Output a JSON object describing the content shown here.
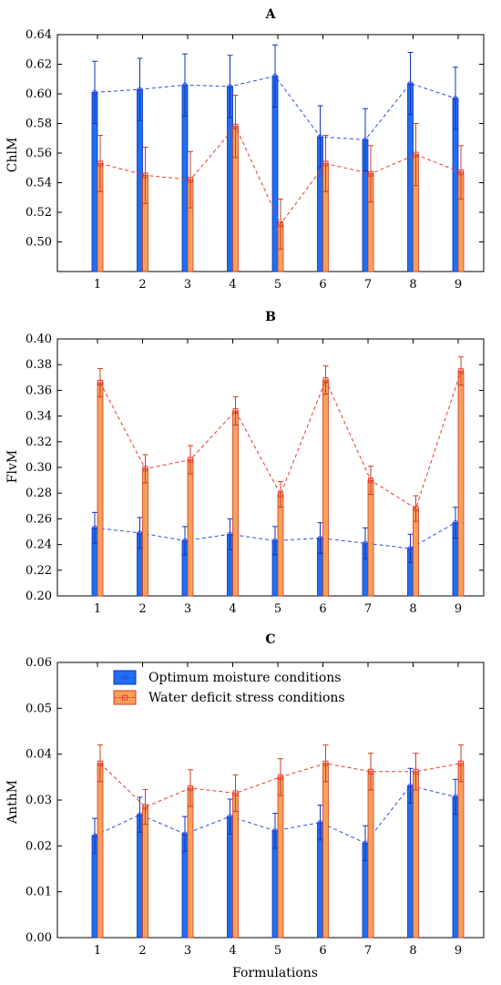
{
  "figure": {
    "xlabel": "Formulations",
    "legend": {
      "placement": "top-left inside panel C",
      "entries": [
        {
          "series": "optimum",
          "label": "Optimum moisture conditions"
        },
        {
          "series": "deficit",
          "label": "Water deficit stress conditions"
        }
      ]
    },
    "colors": {
      "optimum_bar": "#1f6ff0",
      "optimum_edge": "#1030c0",
      "optimum_line": "#2a4de8",
      "deficit_bar": "#f5a15a",
      "deficit_edge": "#d23a20",
      "deficit_line": "#e83a2a",
      "axis": "#000000",
      "frame": "#000000"
    }
  },
  "chart_data": [
    {
      "panel": "A",
      "type": "bar",
      "ylabel": "ChlM",
      "ylim": [
        0.48,
        0.64
      ],
      "yticks": [
        "0.50",
        "0.52",
        "0.54",
        "0.56",
        "0.58",
        "0.60",
        "0.62",
        "0.64"
      ],
      "categories": [
        "1",
        "2",
        "3",
        "4",
        "5",
        "6",
        "7",
        "8",
        "9"
      ],
      "grid": false,
      "series": [
        {
          "name": "Optimum moisture conditions",
          "key": "optimum",
          "values": [
            0.601,
            0.603,
            0.606,
            0.605,
            0.612,
            0.571,
            0.569,
            0.607,
            0.597
          ],
          "err": [
            0.021,
            0.021,
            0.021,
            0.021,
            0.021,
            0.021,
            0.021,
            0.021,
            0.021
          ]
        },
        {
          "name": "Water deficit stress conditions",
          "key": "deficit",
          "values": [
            0.553,
            0.545,
            0.542,
            0.578,
            0.512,
            0.553,
            0.546,
            0.559,
            0.547
          ],
          "err": [
            0.019,
            0.019,
            0.019,
            0.021,
            0.017,
            0.019,
            0.019,
            0.021,
            0.018
          ]
        }
      ]
    },
    {
      "panel": "B",
      "type": "bar",
      "ylabel": "FlvM",
      "ylim": [
        0.2,
        0.4
      ],
      "yticks": [
        "0.20",
        "0.22",
        "0.24",
        "0.26",
        "0.28",
        "0.30",
        "0.32",
        "0.34",
        "0.36",
        "0.38",
        "0.40"
      ],
      "categories": [
        "1",
        "2",
        "3",
        "4",
        "5",
        "6",
        "7",
        "8",
        "9"
      ],
      "grid": false,
      "series": [
        {
          "name": "Optimum moisture conditions",
          "key": "optimum",
          "values": [
            0.253,
            0.249,
            0.243,
            0.248,
            0.243,
            0.245,
            0.241,
            0.237,
            0.257
          ],
          "err": [
            0.012,
            0.012,
            0.011,
            0.012,
            0.011,
            0.012,
            0.012,
            0.011,
            0.012
          ]
        },
        {
          "name": "Water deficit stress conditions",
          "key": "deficit",
          "values": [
            0.366,
            0.299,
            0.306,
            0.344,
            0.279,
            0.368,
            0.29,
            0.268,
            0.375
          ],
          "err": [
            0.011,
            0.011,
            0.011,
            0.011,
            0.01,
            0.011,
            0.011,
            0.01,
            0.011
          ]
        }
      ]
    },
    {
      "panel": "C",
      "type": "bar",
      "ylabel": "AnthM",
      "ylim": [
        0.0,
        0.06
      ],
      "yticks": [
        "0.00",
        "0.01",
        "0.02",
        "0.03",
        "0.04",
        "0.05",
        "0.06"
      ],
      "categories": [
        "1",
        "2",
        "3",
        "4",
        "5",
        "6",
        "7",
        "8",
        "9"
      ],
      "grid": false,
      "series": [
        {
          "name": "Optimum moisture conditions",
          "key": "optimum",
          "values": [
            0.0222,
            0.0268,
            0.0226,
            0.0264,
            0.0233,
            0.0251,
            0.0206,
            0.0331,
            0.0307
          ],
          "err": [
            0.0038,
            0.0038,
            0.0038,
            0.0038,
            0.0038,
            0.0038,
            0.0038,
            0.0038,
            0.0038
          ]
        },
        {
          "name": "Water deficit stress conditions",
          "key": "deficit",
          "values": [
            0.038,
            0.0285,
            0.0326,
            0.0315,
            0.035,
            0.038,
            0.0362,
            0.0362,
            0.038
          ],
          "err": [
            0.004,
            0.0038,
            0.004,
            0.004,
            0.004,
            0.004,
            0.004,
            0.004,
            0.004
          ]
        }
      ]
    }
  ]
}
